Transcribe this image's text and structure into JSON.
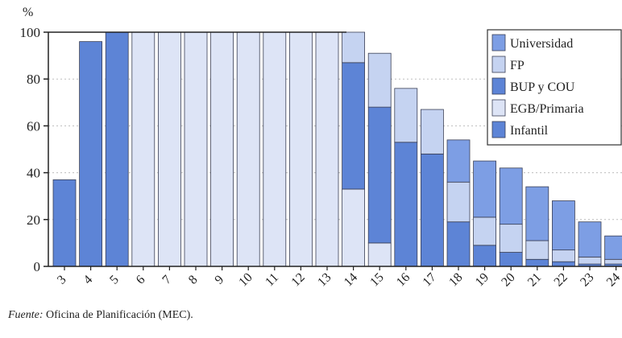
{
  "chart_data": {
    "type": "bar",
    "stacked": true,
    "ylabel": "%",
    "ylim": [
      0,
      100
    ],
    "yticks": [
      0,
      20,
      40,
      60,
      80,
      100
    ],
    "grid": "horizontal-dotted",
    "legend_position": "top-right",
    "categories": [
      "3",
      "4",
      "5",
      "6",
      "7",
      "8",
      "9",
      "10",
      "11",
      "12",
      "13",
      "14",
      "15",
      "16",
      "17",
      "18",
      "19",
      "20",
      "21",
      "22",
      "23",
      "24"
    ],
    "series": [
      {
        "name": "Infantil",
        "color": "#5d84d6",
        "values": [
          37,
          96,
          100,
          0,
          0,
          0,
          0,
          0,
          0,
          0,
          0,
          0,
          0,
          0,
          0,
          0,
          0,
          0,
          0,
          0,
          0,
          0
        ]
      },
      {
        "name": "EGB/Primaria",
        "color": "#dde4f6",
        "values": [
          0,
          0,
          0,
          100,
          100,
          100,
          100,
          100,
          100,
          100,
          100,
          33,
          10,
          0,
          0,
          0,
          0,
          0,
          0,
          0,
          0,
          0
        ]
      },
      {
        "name": "BUP y COU",
        "color": "#5d84d6",
        "values": [
          0,
          0,
          0,
          0,
          0,
          0,
          0,
          0,
          0,
          0,
          0,
          54,
          58,
          53,
          48,
          19,
          9,
          6,
          3,
          2,
          1,
          1
        ]
      },
      {
        "name": "FP",
        "color": "#c5d3f1",
        "values": [
          0,
          0,
          0,
          0,
          0,
          0,
          0,
          0,
          0,
          0,
          0,
          13,
          23,
          23,
          19,
          17,
          12,
          12,
          8,
          5,
          3,
          2
        ]
      },
      {
        "name": "Universidad",
        "color": "#7d9ee4",
        "values": [
          0,
          0,
          0,
          0,
          0,
          0,
          0,
          0,
          0,
          0,
          0,
          0,
          0,
          0,
          0,
          18,
          24,
          24,
          23,
          21,
          15,
          10
        ]
      }
    ],
    "legend_order": [
      "Universidad",
      "FP",
      "BUP y COU",
      "EGB/Primaria",
      "Infantil"
    ]
  },
  "source": {
    "label": "Fuente:",
    "text": "Oficina de Planificación (MEC)."
  }
}
